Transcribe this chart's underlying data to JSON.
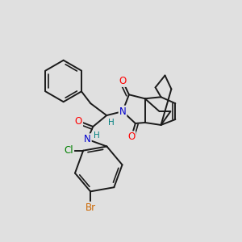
{
  "bg_color": "#e0e0e0",
  "bond_color": "#1a1a1a",
  "bond_width": 1.4,
  "atom_colors": {
    "O": "#ff0000",
    "N": "#0000cd",
    "Cl": "#008000",
    "Br": "#cc6600",
    "H": "#008080",
    "C": "#1a1a1a"
  },
  "font_size": 8.5
}
